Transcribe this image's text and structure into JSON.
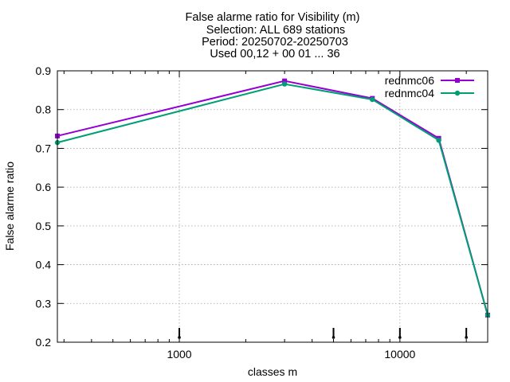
{
  "chart_data": {
    "type": "line",
    "title_lines": [
      "False alarme ratio  for Visibility (m)",
      "Selection: ALL    689 stations",
      "Period: 20250702-20250703",
      "Used 00,12 + 00 01 ... 36"
    ],
    "xlabel": "classes m",
    "ylabel": "False alarme ratio",
    "x_scale": "log",
    "xlim": [
      280,
      25000
    ],
    "ylim": [
      0.2,
      0.9
    ],
    "x_ticks": [
      1000,
      10000
    ],
    "x_tick_labels": [
      "1000",
      "10000"
    ],
    "y_ticks": [
      0.2,
      0.3,
      0.4,
      0.5,
      0.6,
      0.7,
      0.8,
      0.9
    ],
    "y_tick_labels": [
      "0.2",
      "0.3",
      "0.4",
      "0.5",
      "0.6",
      "0.7",
      "0.8",
      "0.9"
    ],
    "grid": true,
    "legend_position": "top-right",
    "sample_markers_x": [
      1000,
      5000,
      10000,
      20000
    ],
    "series": [
      {
        "name": "rednmc06",
        "color": "#9400d3",
        "marker": "square",
        "x": [
          280,
          3000,
          7500,
          15000,
          25000
        ],
        "y": [
          0.732,
          0.874,
          0.829,
          0.726,
          0.27
        ]
      },
      {
        "name": "rednmc04",
        "color": "#009e73",
        "marker": "circle",
        "x": [
          280,
          3000,
          7500,
          15000,
          25000
        ],
        "y": [
          0.715,
          0.866,
          0.826,
          0.721,
          0.27
        ]
      }
    ]
  }
}
